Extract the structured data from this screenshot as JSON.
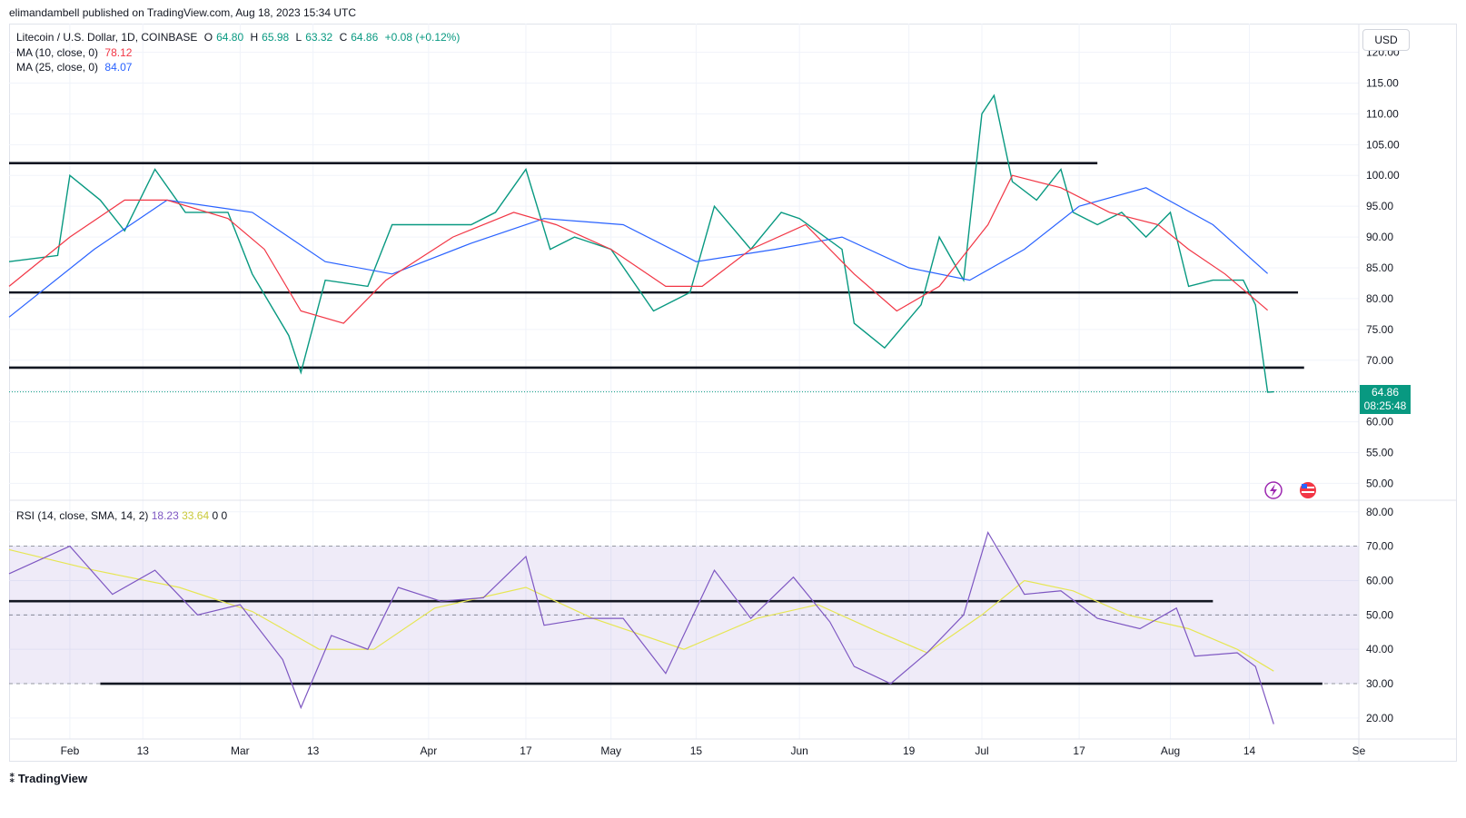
{
  "header": {
    "published": "elimandambell published on TradingView.com, Aug 18, 2023 15:34 UTC"
  },
  "legend": {
    "symbol": "Litecoin / U.S. Dollar, 1D, COINBASE",
    "o_label": "O",
    "o": "64.80",
    "h_label": "H",
    "h": "65.98",
    "l_label": "L",
    "l": "63.32",
    "c_label": "C",
    "c": "64.86",
    "change": "+0.08 (+0.12%)",
    "ma10_label": "MA (10, close, 0)",
    "ma10_value": "78.12",
    "ma25_label": "MA (25, close, 0)",
    "ma25_value": "84.07"
  },
  "rsi_legend": {
    "label": "RSI (14, close, SMA, 14, 2)",
    "rsi": "18.23",
    "sma": "33.64",
    "v1": "0",
    "v2": "0"
  },
  "currency_button": "USD",
  "last_price": {
    "price": "64.86",
    "countdown": "08:25:48"
  },
  "footer": {
    "brand": "TradingView"
  },
  "colors": {
    "up": "#089981",
    "down": "#f23645",
    "ma10": "#f23645",
    "ma25": "#2962ff",
    "rsi": "#7e57c2",
    "rsi_sma": "#e6e653"
  },
  "icons": [
    "lightning-icon",
    "flag-icon"
  ],
  "chart_data": {
    "type": "candlestick",
    "y_ticks": [
      "120.00",
      "115.00",
      "110.00",
      "105.00",
      "100.00",
      "95.00",
      "90.00",
      "85.00",
      "80.00",
      "75.00",
      "70.00",
      "65.00",
      "60.00",
      "55.00",
      "50.00"
    ],
    "y_range": [
      48,
      122
    ],
    "x_ticks": [
      {
        "label": "Feb",
        "date": "2023-02-01"
      },
      {
        "label": "13",
        "date": "2023-02-13"
      },
      {
        "label": "Mar",
        "date": "2023-03-01"
      },
      {
        "label": "13",
        "date": "2023-03-13"
      },
      {
        "label": "Apr",
        "date": "2023-04-01"
      },
      {
        "label": "17",
        "date": "2023-04-17"
      },
      {
        "label": "May",
        "date": "2023-05-01"
      },
      {
        "label": "15",
        "date": "2023-05-15"
      },
      {
        "label": "Jun",
        "date": "2023-06-01"
      },
      {
        "label": "19",
        "date": "2023-06-19"
      },
      {
        "label": "Jul",
        "date": "2023-07-01"
      },
      {
        "label": "17",
        "date": "2023-07-17"
      },
      {
        "label": "Aug",
        "date": "2023-08-01"
      },
      {
        "label": "14",
        "date": "2023-08-14"
      },
      {
        "label": "Se",
        "date": "2023-09-01"
      }
    ],
    "x_range": [
      "2023-01-22",
      "2023-09-01"
    ],
    "closes": [
      {
        "date": "2023-01-22",
        "close": 86
      },
      {
        "date": "2023-01-30",
        "close": 87
      },
      {
        "date": "2023-02-01",
        "close": 100
      },
      {
        "date": "2023-02-06",
        "close": 96
      },
      {
        "date": "2023-02-10",
        "close": 91
      },
      {
        "date": "2023-02-15",
        "close": 101
      },
      {
        "date": "2023-02-20",
        "close": 94
      },
      {
        "date": "2023-02-27",
        "close": 94
      },
      {
        "date": "2023-03-03",
        "close": 84
      },
      {
        "date": "2023-03-09",
        "close": 74
      },
      {
        "date": "2023-03-11",
        "close": 68
      },
      {
        "date": "2023-03-15",
        "close": 83
      },
      {
        "date": "2023-03-22",
        "close": 82
      },
      {
        "date": "2023-03-26",
        "close": 92
      },
      {
        "date": "2023-04-01",
        "close": 92
      },
      {
        "date": "2023-04-08",
        "close": 92
      },
      {
        "date": "2023-04-12",
        "close": 94
      },
      {
        "date": "2023-04-17",
        "close": 101
      },
      {
        "date": "2023-04-21",
        "close": 88
      },
      {
        "date": "2023-04-25",
        "close": 90
      },
      {
        "date": "2023-05-01",
        "close": 88
      },
      {
        "date": "2023-05-08",
        "close": 78
      },
      {
        "date": "2023-05-14",
        "close": 81
      },
      {
        "date": "2023-05-18",
        "close": 95
      },
      {
        "date": "2023-05-24",
        "close": 88
      },
      {
        "date": "2023-05-29",
        "close": 94
      },
      {
        "date": "2023-06-01",
        "close": 93
      },
      {
        "date": "2023-06-08",
        "close": 88
      },
      {
        "date": "2023-06-10",
        "close": 76
      },
      {
        "date": "2023-06-15",
        "close": 72
      },
      {
        "date": "2023-06-21",
        "close": 79
      },
      {
        "date": "2023-06-24",
        "close": 90
      },
      {
        "date": "2023-06-28",
        "close": 83
      },
      {
        "date": "2023-07-01",
        "close": 110
      },
      {
        "date": "2023-07-03",
        "close": 113
      },
      {
        "date": "2023-07-06",
        "close": 99
      },
      {
        "date": "2023-07-10",
        "close": 96
      },
      {
        "date": "2023-07-14",
        "close": 101
      },
      {
        "date": "2023-07-16",
        "close": 94
      },
      {
        "date": "2023-07-20",
        "close": 92
      },
      {
        "date": "2023-07-24",
        "close": 94
      },
      {
        "date": "2023-07-28",
        "close": 90
      },
      {
        "date": "2023-08-01",
        "close": 94
      },
      {
        "date": "2023-08-04",
        "close": 82
      },
      {
        "date": "2023-08-08",
        "close": 83
      },
      {
        "date": "2023-08-13",
        "close": 83
      },
      {
        "date": "2023-08-15",
        "close": 79
      },
      {
        "date": "2023-08-17",
        "close": 64.8
      },
      {
        "date": "2023-08-18",
        "close": 64.86
      }
    ],
    "ma10": [
      {
        "date": "2023-01-22",
        "v": 82
      },
      {
        "date": "2023-02-01",
        "v": 90
      },
      {
        "date": "2023-02-10",
        "v": 96
      },
      {
        "date": "2023-02-17",
        "v": 96
      },
      {
        "date": "2023-02-27",
        "v": 93
      },
      {
        "date": "2023-03-05",
        "v": 88
      },
      {
        "date": "2023-03-11",
        "v": 78
      },
      {
        "date": "2023-03-18",
        "v": 76
      },
      {
        "date": "2023-03-25",
        "v": 83
      },
      {
        "date": "2023-04-05",
        "v": 90
      },
      {
        "date": "2023-04-15",
        "v": 94
      },
      {
        "date": "2023-04-22",
        "v": 92
      },
      {
        "date": "2023-05-01",
        "v": 88
      },
      {
        "date": "2023-05-10",
        "v": 82
      },
      {
        "date": "2023-05-16",
        "v": 82
      },
      {
        "date": "2023-05-24",
        "v": 88
      },
      {
        "date": "2023-06-02",
        "v": 92
      },
      {
        "date": "2023-06-10",
        "v": 84
      },
      {
        "date": "2023-06-17",
        "v": 78
      },
      {
        "date": "2023-06-24",
        "v": 82
      },
      {
        "date": "2023-07-02",
        "v": 92
      },
      {
        "date": "2023-07-06",
        "v": 100
      },
      {
        "date": "2023-07-14",
        "v": 98
      },
      {
        "date": "2023-07-22",
        "v": 94
      },
      {
        "date": "2023-07-30",
        "v": 92
      },
      {
        "date": "2023-08-04",
        "v": 88
      },
      {
        "date": "2023-08-10",
        "v": 84
      },
      {
        "date": "2023-08-17",
        "v": 78.12
      }
    ],
    "ma25": [
      {
        "date": "2023-01-22",
        "v": 77
      },
      {
        "date": "2023-02-05",
        "v": 88
      },
      {
        "date": "2023-02-17",
        "v": 96
      },
      {
        "date": "2023-03-03",
        "v": 94
      },
      {
        "date": "2023-03-15",
        "v": 86
      },
      {
        "date": "2023-03-26",
        "v": 84
      },
      {
        "date": "2023-04-08",
        "v": 89
      },
      {
        "date": "2023-04-20",
        "v": 93
      },
      {
        "date": "2023-05-03",
        "v": 92
      },
      {
        "date": "2023-05-15",
        "v": 86
      },
      {
        "date": "2023-05-28",
        "v": 88
      },
      {
        "date": "2023-06-08",
        "v": 90
      },
      {
        "date": "2023-06-19",
        "v": 85
      },
      {
        "date": "2023-06-29",
        "v": 83
      },
      {
        "date": "2023-07-08",
        "v": 88
      },
      {
        "date": "2023-07-17",
        "v": 95
      },
      {
        "date": "2023-07-28",
        "v": 98
      },
      {
        "date": "2023-08-08",
        "v": 92
      },
      {
        "date": "2023-08-17",
        "v": 84.07
      }
    ],
    "horizontal_lines": [
      {
        "from": "2023-01-22",
        "to": "2023-07-20",
        "y": 102
      },
      {
        "from": "2023-01-22",
        "to": "2023-08-22",
        "y": 81
      },
      {
        "from": "2023-01-22",
        "to": "2023-08-23",
        "y": 68.8
      }
    ],
    "last_price_line": 64.86,
    "rsi": {
      "y_ticks": [
        "80.00",
        "70.00",
        "60.00",
        "50.00",
        "40.00",
        "30.00",
        "20.00"
      ],
      "y_range": [
        16,
        81
      ],
      "band": [
        30,
        70
      ],
      "midline": 50,
      "values": [
        {
          "date": "2023-01-22",
          "v": 62
        },
        {
          "date": "2023-02-01",
          "v": 70
        },
        {
          "date": "2023-02-08",
          "v": 56
        },
        {
          "date": "2023-02-15",
          "v": 63
        },
        {
          "date": "2023-02-22",
          "v": 50
        },
        {
          "date": "2023-03-01",
          "v": 53
        },
        {
          "date": "2023-03-08",
          "v": 37
        },
        {
          "date": "2023-03-11",
          "v": 23
        },
        {
          "date": "2023-03-16",
          "v": 44
        },
        {
          "date": "2023-03-22",
          "v": 40
        },
        {
          "date": "2023-03-27",
          "v": 58
        },
        {
          "date": "2023-04-03",
          "v": 54
        },
        {
          "date": "2023-04-10",
          "v": 55
        },
        {
          "date": "2023-04-17",
          "v": 67
        },
        {
          "date": "2023-04-20",
          "v": 47
        },
        {
          "date": "2023-04-27",
          "v": 49
        },
        {
          "date": "2023-05-03",
          "v": 49
        },
        {
          "date": "2023-05-10",
          "v": 33
        },
        {
          "date": "2023-05-18",
          "v": 63
        },
        {
          "date": "2023-05-24",
          "v": 49
        },
        {
          "date": "2023-05-31",
          "v": 61
        },
        {
          "date": "2023-06-06",
          "v": 48
        },
        {
          "date": "2023-06-10",
          "v": 35
        },
        {
          "date": "2023-06-16",
          "v": 30
        },
        {
          "date": "2023-06-22",
          "v": 39
        },
        {
          "date": "2023-06-28",
          "v": 50
        },
        {
          "date": "2023-07-02",
          "v": 74
        },
        {
          "date": "2023-07-08",
          "v": 56
        },
        {
          "date": "2023-07-14",
          "v": 57
        },
        {
          "date": "2023-07-20",
          "v": 49
        },
        {
          "date": "2023-07-27",
          "v": 46
        },
        {
          "date": "2023-08-02",
          "v": 52
        },
        {
          "date": "2023-08-05",
          "v": 38
        },
        {
          "date": "2023-08-12",
          "v": 39
        },
        {
          "date": "2023-08-15",
          "v": 35
        },
        {
          "date": "2023-08-18",
          "v": 18.23
        }
      ],
      "sma": [
        {
          "date": "2023-01-22",
          "v": 69
        },
        {
          "date": "2023-02-05",
          "v": 63
        },
        {
          "date": "2023-02-19",
          "v": 58
        },
        {
          "date": "2023-03-03",
          "v": 51
        },
        {
          "date": "2023-03-14",
          "v": 40
        },
        {
          "date": "2023-03-23",
          "v": 40
        },
        {
          "date": "2023-04-02",
          "v": 52
        },
        {
          "date": "2023-04-17",
          "v": 58
        },
        {
          "date": "2023-04-28",
          "v": 49
        },
        {
          "date": "2023-05-13",
          "v": 40
        },
        {
          "date": "2023-05-25",
          "v": 49
        },
        {
          "date": "2023-06-04",
          "v": 53
        },
        {
          "date": "2023-06-14",
          "v": 45
        },
        {
          "date": "2023-06-22",
          "v": 39
        },
        {
          "date": "2023-07-01",
          "v": 50
        },
        {
          "date": "2023-07-08",
          "v": 60
        },
        {
          "date": "2023-07-16",
          "v": 57
        },
        {
          "date": "2023-07-25",
          "v": 50
        },
        {
          "date": "2023-08-04",
          "v": 46
        },
        {
          "date": "2023-08-12",
          "v": 40
        },
        {
          "date": "2023-08-18",
          "v": 33.64
        }
      ],
      "horizontal_lines": [
        {
          "from": "2023-01-22",
          "to": "2023-08-08",
          "y": 54
        },
        {
          "from": "2023-02-06",
          "to": "2023-08-26",
          "y": 30
        }
      ]
    }
  }
}
